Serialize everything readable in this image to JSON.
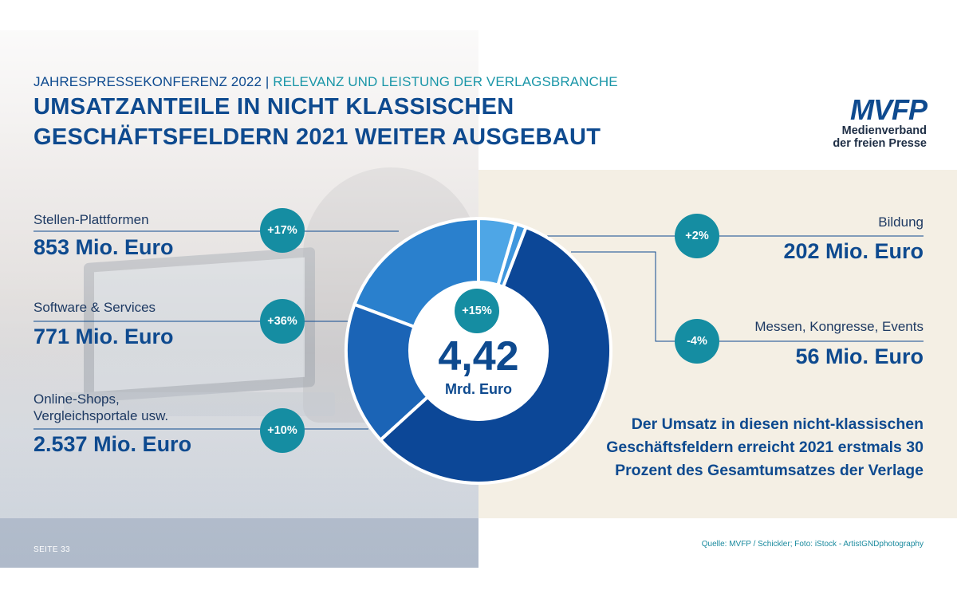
{
  "header": {
    "kicker_left": "JAHRESPRESSEKONFERENZ 2022 | ",
    "kicker_right": "RELEVANZ UND LEISTUNG DER VERLAGSBRANCHE",
    "title_line_1": "UMSATZANTEILE IN NICHT KLASSISCHEN",
    "title_line_2": "GESCHÄFTSFELDERN 2021 WEITER AUSGEBAUT"
  },
  "logo": {
    "mark": "MVFP",
    "line_1": "Medienverband",
    "line_2": "der freien Presse"
  },
  "colors": {
    "primary_blue": "#0e4a8f",
    "teal_badge": "#158da2",
    "beige_panel": "#f4efe4"
  },
  "chart_data": {
    "type": "pie",
    "style": "donut",
    "unit": "Mio. Euro",
    "total": {
      "value": "4,42",
      "unit": "Mrd. Euro",
      "change": "+15%"
    },
    "segments": [
      {
        "label": "Stellen-Plattformen",
        "value": 853,
        "value_text": "853 Mio. Euro",
        "change": "+17%",
        "color": "#2a80cd"
      },
      {
        "label": "Software & Services",
        "value": 771,
        "value_text": "771 Mio. Euro",
        "change": "+36%",
        "color": "#1b64b6"
      },
      {
        "label_lines": [
          "Online-Shops,",
          "Vergleichsportale usw."
        ],
        "value": 2537,
        "value_text": "2.537 Mio. Euro",
        "change": "+10%",
        "color": "#0c4797"
      },
      {
        "label": "Messen, Kongresse, Events",
        "value": 56,
        "value_text": "56 Mio. Euro",
        "change": "-4%",
        "color": "#3f97de"
      },
      {
        "label": "Bildung",
        "value": 202,
        "value_text": "202 Mio. Euro",
        "change": "+2%",
        "color": "#4ea6e6"
      }
    ]
  },
  "note": "Der Umsatz in diesen nicht-klassischen Geschäftsfeldern erreicht 2021 erstmals 30 Prozent des Gesamtumsatzes der Verlage",
  "footer": {
    "page": "SEITE 33",
    "source": "Quelle: MVFP / Schickler; Foto: iStock - ArtistGNDphotography"
  }
}
